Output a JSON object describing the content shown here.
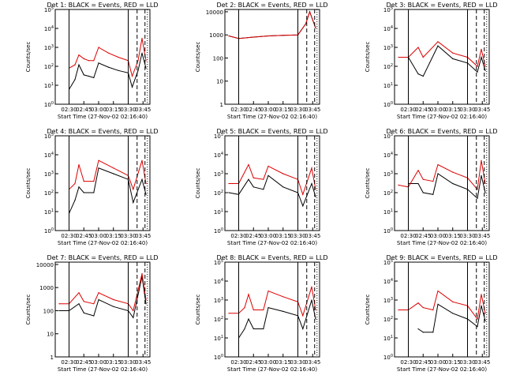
{
  "figure": {
    "panels": [
      {
        "title": "Det 1: BLACK = Events, RED = LLD",
        "ylabel": "Counts/sec",
        "xlabel": "Start Time (27-Nov-02 02:16:40)",
        "xticks": [
          "02:30",
          "02:45",
          "03:00",
          "03:15",
          "03:30",
          "03:45"
        ],
        "yticks": [
          "10^0",
          "10^1",
          "10^2",
          "10^3",
          "10^4",
          "10^5"
        ],
        "exp_ticks": true,
        "ylim_log": [
          0,
          5
        ]
      },
      {
        "title": "Det 2: BLACK = Events, RED = LLD",
        "ylabel": "Counts/sec",
        "xlabel": "Start Time (27-Nov-02 02:16:40)",
        "xticks": [
          "02:30",
          "02:45",
          "03:00",
          "03:15",
          "03:30",
          "03:45"
        ],
        "yticks": [
          "1",
          "10",
          "100",
          "1000",
          "10000"
        ],
        "exp_ticks": false,
        "ylim_log": [
          0,
          4.1
        ]
      },
      {
        "title": "Det 3: BLACK = Events, RED = LLD",
        "ylabel": "Counts/sec",
        "xlabel": "Start Time (27-Nov-02 02:16:40)",
        "xticks": [
          "02:30",
          "02:45",
          "03:00",
          "03:15",
          "03:30",
          "03:45"
        ],
        "yticks": [
          "10^0",
          "10^1",
          "10^2",
          "10^3",
          "10^4",
          "10^5"
        ],
        "exp_ticks": true,
        "ylim_log": [
          0,
          5
        ]
      },
      {
        "title": "Det 4: BLACK = Events, RED = LLD",
        "ylabel": "Counts/sec",
        "xlabel": "Start Time (27-Nov-02 02:16:40)",
        "xticks": [
          "02:30",
          "02:45",
          "03:00",
          "03:15",
          "03:30",
          "03:45"
        ],
        "yticks": [
          "10^0",
          "10^1",
          "10^2",
          "10^3",
          "10^4",
          "10^5"
        ],
        "exp_ticks": true,
        "ylim_log": [
          0,
          5
        ]
      },
      {
        "title": "Det 5: BLACK = Events, RED = LLD",
        "ylabel": "Counts/sec",
        "xlabel": "Start Time (27-Nov-02 02:16:40)",
        "xticks": [
          "02:30",
          "02:45",
          "03:00",
          "03:15",
          "03:30",
          "03:45"
        ],
        "yticks": [
          "10^0",
          "10^1",
          "10^2",
          "10^3",
          "10^4",
          "10^5"
        ],
        "exp_ticks": true,
        "ylim_log": [
          0,
          5
        ]
      },
      {
        "title": "Det 6: BLACK = Events, RED = LLD",
        "ylabel": "Counts/sec",
        "xlabel": "Start Time (27-Nov-02 02:16:40)",
        "xticks": [
          "02:30",
          "02:45",
          "03:00",
          "03:15",
          "03:30",
          "03:45"
        ],
        "yticks": [
          "10^0",
          "10^1",
          "10^2",
          "10^3",
          "10^4",
          "10^5"
        ],
        "exp_ticks": true,
        "ylim_log": [
          0,
          5
        ]
      },
      {
        "title": "Det 7: BLACK = Events, RED = LLD",
        "ylabel": "Counts/sec",
        "xlabel": "Start Time (27-Nov-02 02:16:40)",
        "xticks": [
          "02:30",
          "02:45",
          "03:00",
          "03:15",
          "03:30",
          "03:45"
        ],
        "yticks": [
          "1",
          "10",
          "100",
          "1000",
          "10000"
        ],
        "exp_ticks": false,
        "ylim_log": [
          0,
          4.1
        ]
      },
      {
        "title": "Det 8: BLACK = Events, RED = LLD",
        "ylabel": "Counts/sec",
        "xlabel": "Start Time (27-Nov-02 02:16:40)",
        "xticks": [
          "02:30",
          "02:45",
          "03:00",
          "03:15",
          "03:30",
          "03:45"
        ],
        "yticks": [
          "10^0",
          "10^1",
          "10^2",
          "10^3",
          "10^4",
          "10^5"
        ],
        "exp_ticks": true,
        "ylim_log": [
          0,
          5
        ]
      },
      {
        "title": "Det 9: BLACK = Events, RED = LLD",
        "ylabel": "Counts/sec",
        "xlabel": "Start Time (27-Nov-02 02:16:40)",
        "xticks": [
          "02:30",
          "02:45",
          "03:00",
          "03:15",
          "03:30",
          "03:45"
        ],
        "yticks": [
          "10^0",
          "10^1",
          "10^2",
          "10^3",
          "10^4",
          "10^5"
        ],
        "exp_ticks": true,
        "ylim_log": [
          0,
          5
        ]
      }
    ]
  },
  "chart_data": [
    {
      "type": "line",
      "title": "Det 1: BLACK = Events, RED = LLD",
      "xlabel": "Start Time (27-Nov-02 02:16:40)",
      "ylabel": "Counts/sec",
      "yscale": "log",
      "grid": false,
      "colors": {
        "events": "#000000",
        "lld": "#dd0000"
      },
      "series": [
        {
          "name": "Events",
          "color": "#000000",
          "x": [
            "02:30",
            "02:36",
            "02:40",
            "02:45",
            "02:50",
            "02:55",
            "03:00",
            "03:10",
            "03:20",
            "03:30",
            "03:34",
            "03:40",
            "03:44",
            "03:48"
          ],
          "y": [
            6,
            20,
            120,
            35,
            30,
            25,
            150,
            90,
            60,
            45,
            8,
            60,
            500,
            80
          ]
        },
        {
          "name": "LLD",
          "color": "#dd0000",
          "x": [
            "02:30",
            "02:36",
            "02:40",
            "02:45",
            "02:50",
            "02:55",
            "03:00",
            "03:10",
            "03:20",
            "03:30",
            "03:34",
            "03:40",
            "03:44",
            "03:48"
          ],
          "y": [
            80,
            120,
            400,
            250,
            200,
            200,
            1000,
            500,
            300,
            200,
            30,
            200,
            3000,
            200
          ]
        }
      ]
    },
    {
      "type": "line",
      "title": "Det 2: BLACK = Events, RED = LLD",
      "xlabel": "Start Time (27-Nov-02 02:16:40)",
      "ylabel": "Counts/sec",
      "yscale": "log",
      "grid": false,
      "series": [
        {
          "name": "Events",
          "color": "#000000",
          "x": [
            "02:20",
            "02:30",
            "02:45",
            "03:00",
            "03:15",
            "03:30",
            "03:38",
            "03:42",
            "03:48"
          ],
          "y": [
            900,
            700,
            800,
            900,
            950,
            1000,
            3000,
            10000,
            2000
          ]
        },
        {
          "name": "LLD",
          "color": "#dd0000",
          "x": [
            "02:20",
            "02:30",
            "02:45",
            "03:00",
            "03:15",
            "03:30",
            "03:38",
            "03:42",
            "03:48"
          ],
          "y": [
            900,
            700,
            800,
            900,
            950,
            1000,
            3000,
            10000,
            2000
          ]
        }
      ]
    },
    {
      "type": "line",
      "title": "Det 3: BLACK = Events, RED = LLD",
      "xlabel": "Start Time (27-Nov-02 02:16:40)",
      "ylabel": "Counts/sec",
      "yscale": "log",
      "grid": false,
      "series": [
        {
          "name": "Events",
          "color": "#000000",
          "x": [
            "02:30",
            "02:40",
            "02:45",
            "03:00",
            "03:15",
            "03:30",
            "03:40",
            "03:44",
            "03:48"
          ],
          "y": [
            300,
            40,
            30,
            1200,
            250,
            150,
            50,
            300,
            60
          ]
        },
        {
          "name": "LLD",
          "color": "#dd0000",
          "x": [
            "02:20",
            "02:30",
            "02:40",
            "02:45",
            "03:00",
            "03:15",
            "03:30",
            "03:40",
            "03:44",
            "03:48"
          ],
          "y": [
            300,
            300,
            1000,
            300,
            2000,
            500,
            300,
            100,
            800,
            100
          ]
        }
      ]
    },
    {
      "type": "line",
      "title": "Det 4: BLACK = Events, RED = LLD",
      "xlabel": "Start Time (27-Nov-02 02:16:40)",
      "ylabel": "Counts/sec",
      "yscale": "log",
      "grid": false,
      "series": [
        {
          "name": "Events",
          "color": "#000000",
          "x": [
            "02:30",
            "02:36",
            "02:40",
            "02:45",
            "02:55",
            "03:00",
            "03:15",
            "03:30",
            "03:35",
            "03:44",
            "03:48"
          ],
          "y": [
            8,
            40,
            200,
            100,
            100,
            2000,
            1000,
            500,
            30,
            500,
            80
          ]
        },
        {
          "name": "LLD",
          "color": "#dd0000",
          "x": [
            "02:30",
            "02:36",
            "02:40",
            "02:45",
            "02:55",
            "03:00",
            "03:15",
            "03:30",
            "03:35",
            "03:44",
            "03:48"
          ],
          "y": [
            150,
            300,
            3000,
            400,
            400,
            5000,
            2000,
            800,
            150,
            5000,
            300
          ]
        }
      ]
    },
    {
      "type": "line",
      "title": "Det 5: BLACK = Events, RED = LLD",
      "xlabel": "Start Time (27-Nov-02 02:16:40)",
      "ylabel": "Counts/sec",
      "yscale": "log",
      "grid": false,
      "series": [
        {
          "name": "Events",
          "color": "#000000",
          "x": [
            "02:20",
            "02:30",
            "02:40",
            "02:45",
            "02:55",
            "03:00",
            "03:15",
            "03:30",
            "03:35",
            "03:44",
            "03:48"
          ],
          "y": [
            100,
            80,
            500,
            200,
            150,
            800,
            200,
            100,
            20,
            300,
            60
          ]
        },
        {
          "name": "LLD",
          "color": "#dd0000",
          "x": [
            "02:20",
            "02:30",
            "02:40",
            "02:45",
            "02:55",
            "03:00",
            "03:15",
            "03:30",
            "03:35",
            "03:44",
            "03:48"
          ],
          "y": [
            300,
            300,
            3000,
            600,
            500,
            2500,
            1000,
            500,
            80,
            2000,
            150
          ]
        }
      ]
    },
    {
      "type": "line",
      "title": "Det 6: BLACK = Events, RED = LLD",
      "xlabel": "Start Time (27-Nov-02 02:16:40)",
      "ylabel": "Counts/sec",
      "yscale": "log",
      "grid": false,
      "series": [
        {
          "name": "Events",
          "color": "#000000",
          "x": [
            "02:30",
            "02:40",
            "02:45",
            "02:55",
            "03:00",
            "03:15",
            "03:30",
            "03:40",
            "03:44",
            "03:48"
          ],
          "y": [
            300,
            300,
            100,
            80,
            1000,
            300,
            150,
            50,
            800,
            100
          ]
        },
        {
          "name": "LLD",
          "color": "#dd0000",
          "x": [
            "02:20",
            "02:30",
            "02:40",
            "02:45",
            "02:55",
            "03:00",
            "03:15",
            "03:30",
            "03:40",
            "03:44",
            "03:48"
          ],
          "y": [
            250,
            200,
            1500,
            500,
            400,
            3000,
            1200,
            600,
            150,
            5000,
            300
          ]
        }
      ]
    },
    {
      "type": "line",
      "title": "Det 7: BLACK = Events, RED = LLD",
      "xlabel": "Start Time (27-Nov-02 02:16:40)",
      "ylabel": "Counts/sec",
      "yscale": "log",
      "grid": false,
      "series": [
        {
          "name": "Events",
          "color": "#000000",
          "x": [
            "02:20",
            "02:30",
            "02:40",
            "02:45",
            "02:55",
            "03:00",
            "03:15",
            "03:30",
            "03:35",
            "03:44",
            "03:48"
          ],
          "y": [
            100,
            100,
            200,
            80,
            60,
            300,
            150,
            100,
            50,
            3000,
            200
          ]
        },
        {
          "name": "LLD",
          "color": "#dd0000",
          "x": [
            "02:20",
            "02:30",
            "02:40",
            "02:45",
            "02:55",
            "03:00",
            "03:15",
            "03:30",
            "03:35",
            "03:44",
            "03:48"
          ],
          "y": [
            200,
            200,
            600,
            250,
            200,
            600,
            300,
            200,
            100,
            4000,
            300
          ]
        }
      ]
    },
    {
      "type": "line",
      "title": "Det 8: BLACK = Events, RED = LLD",
      "xlabel": "Start Time (27-Nov-02 02:16:40)",
      "ylabel": "Counts/sec",
      "yscale": "log",
      "grid": false,
      "series": [
        {
          "name": "Events",
          "color": "#000000",
          "x": [
            "02:30",
            "02:36",
            "02:40",
            "02:45",
            "02:55",
            "03:00",
            "03:15",
            "03:30",
            "03:35",
            "03:44",
            "03:48"
          ],
          "y": [
            10,
            30,
            100,
            30,
            30,
            400,
            250,
            150,
            30,
            1000,
            100
          ]
        },
        {
          "name": "LLD",
          "color": "#dd0000",
          "x": [
            "02:20",
            "02:30",
            "02:36",
            "02:40",
            "02:45",
            "02:55",
            "03:00",
            "03:15",
            "03:30",
            "03:35",
            "03:44",
            "03:48"
          ],
          "y": [
            200,
            200,
            400,
            2000,
            300,
            300,
            3000,
            1500,
            800,
            150,
            5000,
            300
          ]
        }
      ]
    },
    {
      "type": "line",
      "title": "Det 9: BLACK = Events, RED = LLD",
      "xlabel": "Start Time (27-Nov-02 02:16:40)",
      "ylabel": "Counts/sec",
      "yscale": "log",
      "grid": false,
      "series": [
        {
          "name": "Events",
          "color": "#000000",
          "x": [
            "02:40",
            "02:45",
            "02:55",
            "03:00",
            "03:15",
            "03:30",
            "03:40",
            "03:44",
            "03:48"
          ],
          "y": [
            30,
            20,
            20,
            600,
            200,
            100,
            40,
            500,
            80
          ]
        },
        {
          "name": "LLD",
          "color": "#dd0000",
          "x": [
            "02:20",
            "02:30",
            "02:40",
            "02:45",
            "02:55",
            "03:00",
            "03:15",
            "03:30",
            "03:40",
            "03:44",
            "03:48"
          ],
          "y": [
            300,
            300,
            700,
            400,
            300,
            3000,
            800,
            500,
            100,
            2000,
            200
          ]
        }
      ]
    }
  ]
}
